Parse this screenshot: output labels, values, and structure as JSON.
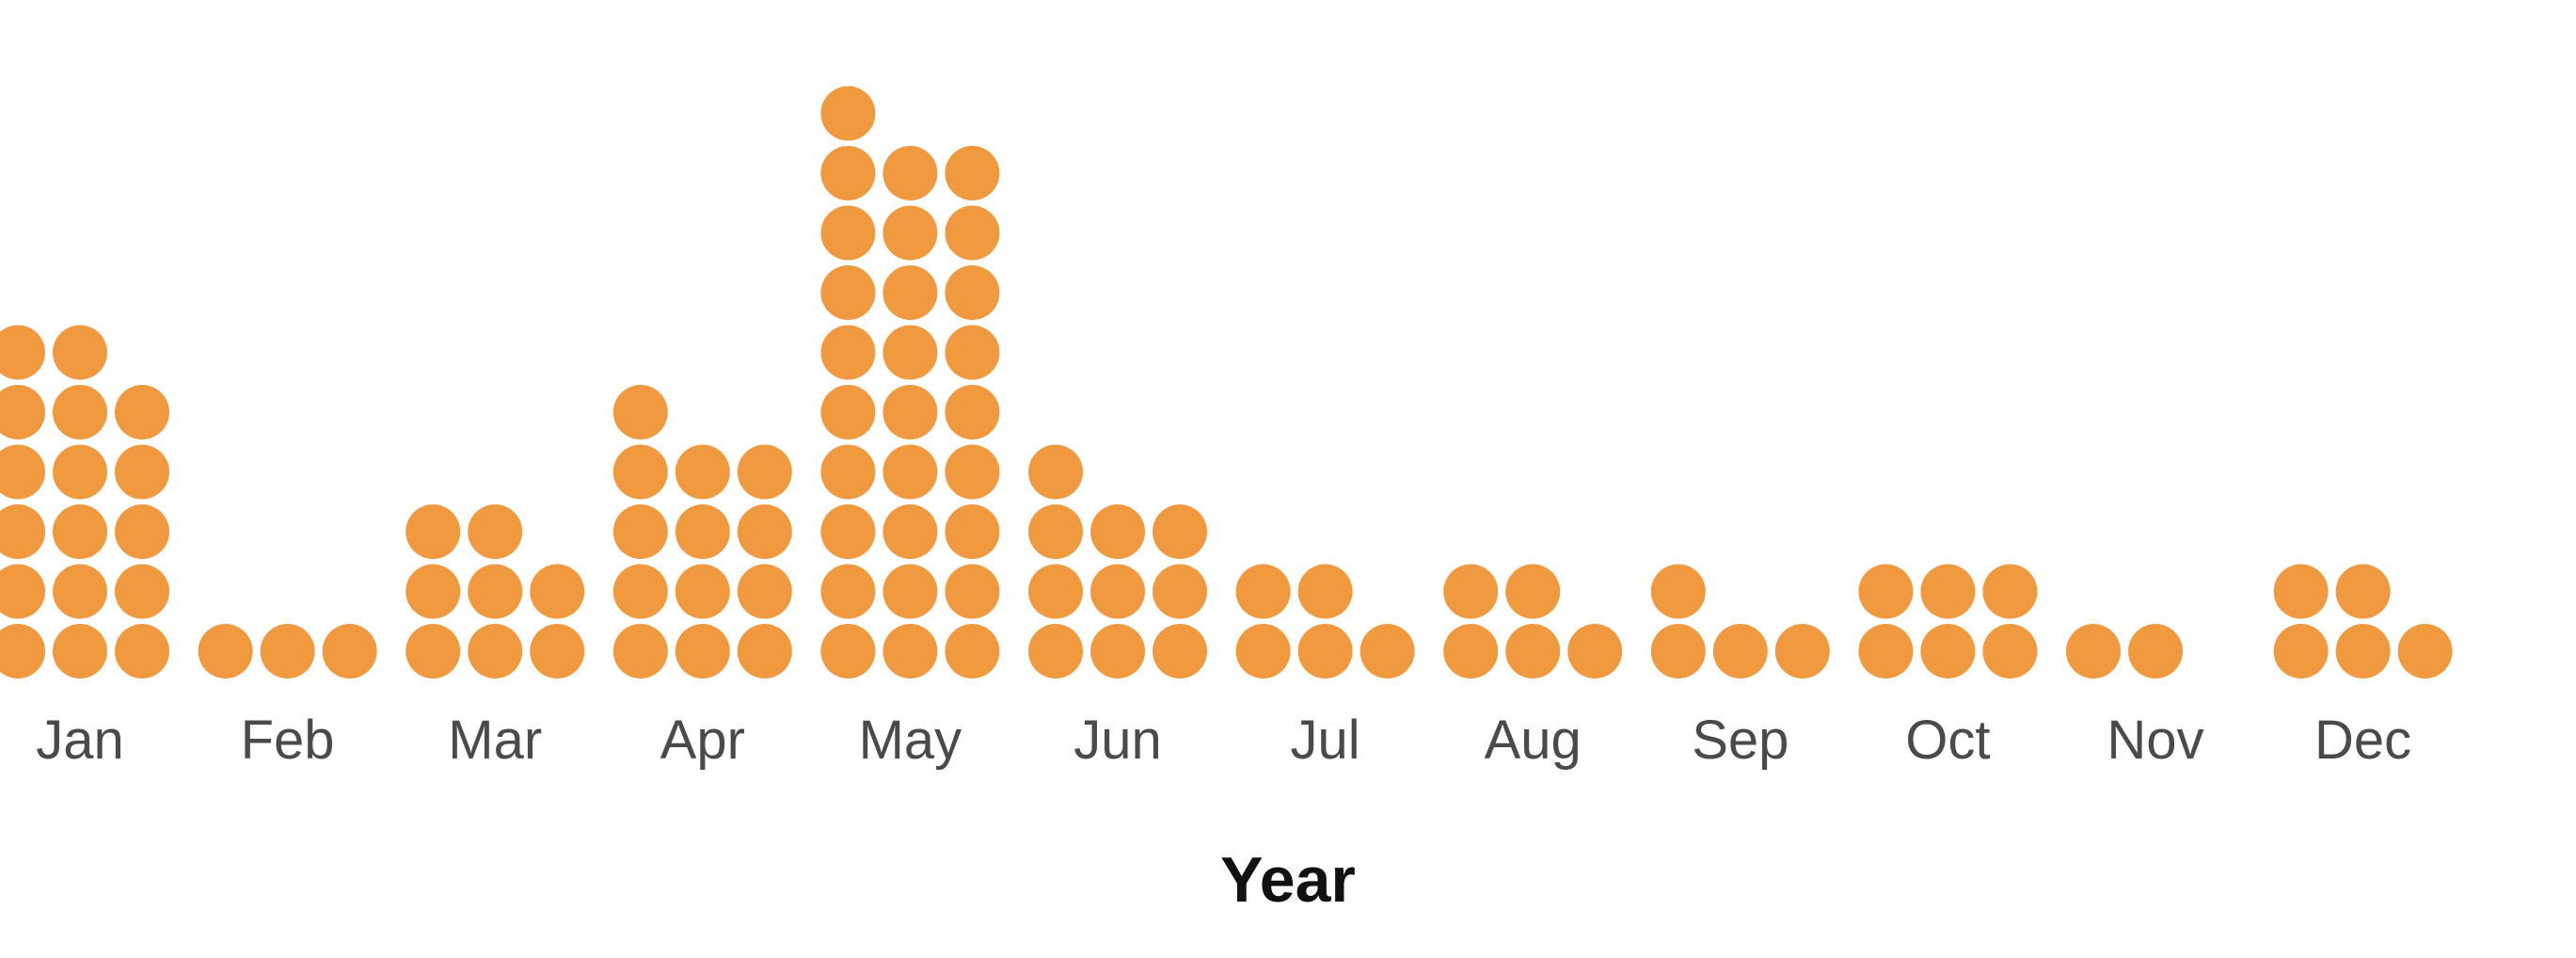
{
  "chart_data": {
    "type": "dot-plot",
    "xlabel": "Year",
    "ylabel": "",
    "dot_color": "#F0993E",
    "grid": false,
    "categories": [
      "Jan",
      "Feb",
      "Mar",
      "Apr",
      "May",
      "Jun",
      "Jul",
      "Aug",
      "Sep",
      "Oct",
      "Nov",
      "Dec"
    ],
    "columns": [
      [
        6,
        6,
        5
      ],
      [
        1,
        1,
        1
      ],
      [
        3,
        3,
        2
      ],
      [
        5,
        4,
        4
      ],
      [
        10,
        9,
        9
      ],
      [
        4,
        3,
        3
      ],
      [
        2,
        2,
        1
      ],
      [
        2,
        2,
        1
      ],
      [
        2,
        1,
        1
      ],
      [
        2,
        2,
        2
      ],
      [
        1,
        1
      ],
      [
        2,
        2,
        1
      ]
    ],
    "values": [
      17,
      3,
      8,
      13,
      28,
      10,
      5,
      5,
      4,
      6,
      2,
      5
    ]
  }
}
